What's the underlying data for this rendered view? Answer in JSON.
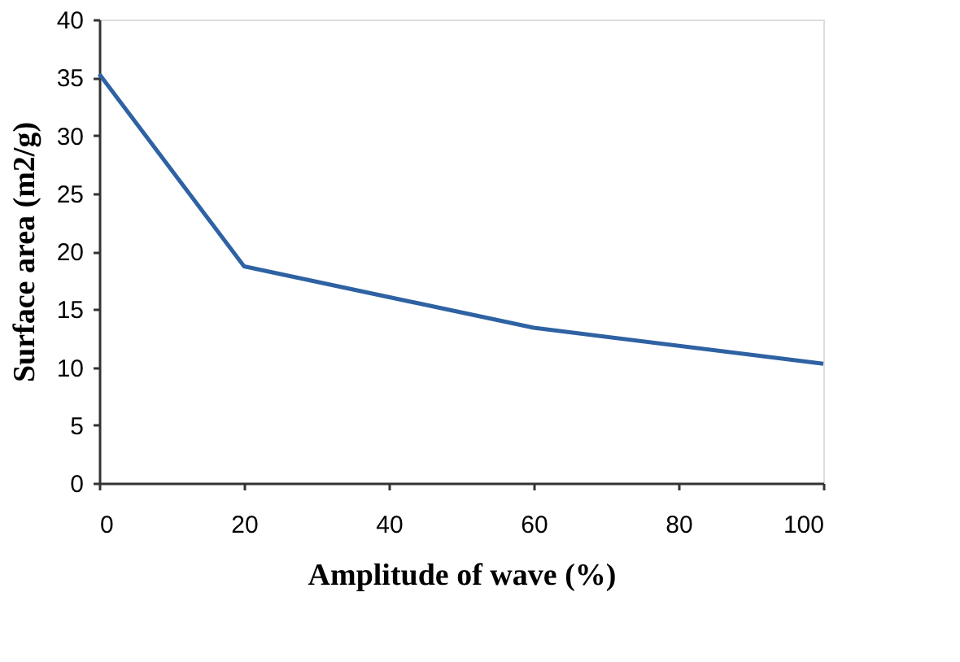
{
  "chart_data": {
    "type": "line",
    "xlabel": "Amplitude of wave (%)",
    "ylabel": "Surface area (m2/g)",
    "x": [
      0,
      20,
      60,
      100
    ],
    "series": [
      {
        "color": "#2e62a3",
        "values": [
          35.3,
          18.7,
          13.4,
          10.3
        ]
      }
    ],
    "xlim": [
      0,
      100
    ],
    "xticks": [
      0,
      20,
      40,
      60,
      80,
      100
    ],
    "ylim": [
      0,
      40
    ],
    "yticks": [
      0,
      5,
      10,
      15,
      20,
      25,
      30,
      35,
      40
    ],
    "grid": false,
    "marker": "none",
    "line_style": "solid"
  }
}
